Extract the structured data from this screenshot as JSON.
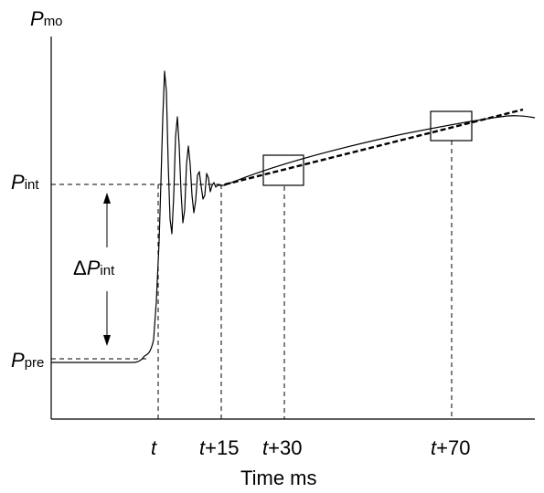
{
  "y_axis": {
    "label_main": "P",
    "label_sub": "mo"
  },
  "levels": {
    "p_int": {
      "main": "P",
      "sub": "int"
    },
    "p_pre": {
      "main": "P",
      "sub": "pre"
    }
  },
  "delta": {
    "symbol": "Δ",
    "main": "P",
    "sub": "int"
  },
  "x_ticks": [
    {
      "var": "t",
      "suffix": ""
    },
    {
      "var": "t",
      "suffix": "+15"
    },
    {
      "var": "t",
      "suffix": "+30"
    },
    {
      "var": "t",
      "suffix": "+70"
    }
  ],
  "x_axis_title": "Time ms"
}
